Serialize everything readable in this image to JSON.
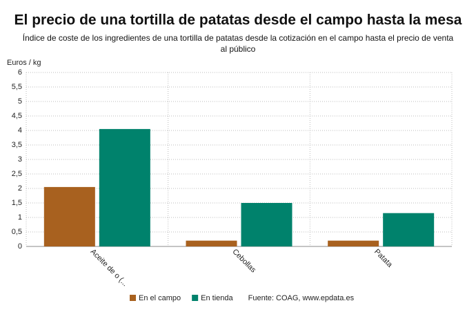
{
  "chart_data": {
    "type": "bar",
    "title": "El precio de una tortilla de patatas desde el campo hasta la mesa",
    "subtitle": [
      "Índice de coste de los ingredientes de una tortilla de patatas desde la cotización en el campo hasta el precio de venta",
      "al público"
    ],
    "y_label": "Euros / kg",
    "source": "Fuente: COAG, www.epdata.es",
    "categories": [
      "Aceite de o (...",
      "Cebollas",
      "Patata"
    ],
    "series": [
      {
        "name": "En el campo",
        "color": "#a8611f",
        "values": [
          2.05,
          0.2,
          0.2
        ]
      },
      {
        "name": "En tienda",
        "color": "#00826c",
        "values": [
          4.05,
          1.5,
          1.15
        ]
      }
    ],
    "ylim": [
      0,
      6
    ],
    "yticks": [
      0,
      {
        "value": 0.5,
        "label": "0,5"
      },
      1,
      {
        "value": 1.5,
        "label": "1,5"
      },
      2,
      {
        "value": 2.5,
        "label": "2,5"
      },
      3,
      {
        "value": 3.5,
        "label": "3,5"
      },
      4,
      {
        "value": 4.5,
        "label": "4,5"
      },
      5,
      {
        "value": 5.5,
        "label": "5,5"
      },
      6
    ],
    "grid": true
  }
}
